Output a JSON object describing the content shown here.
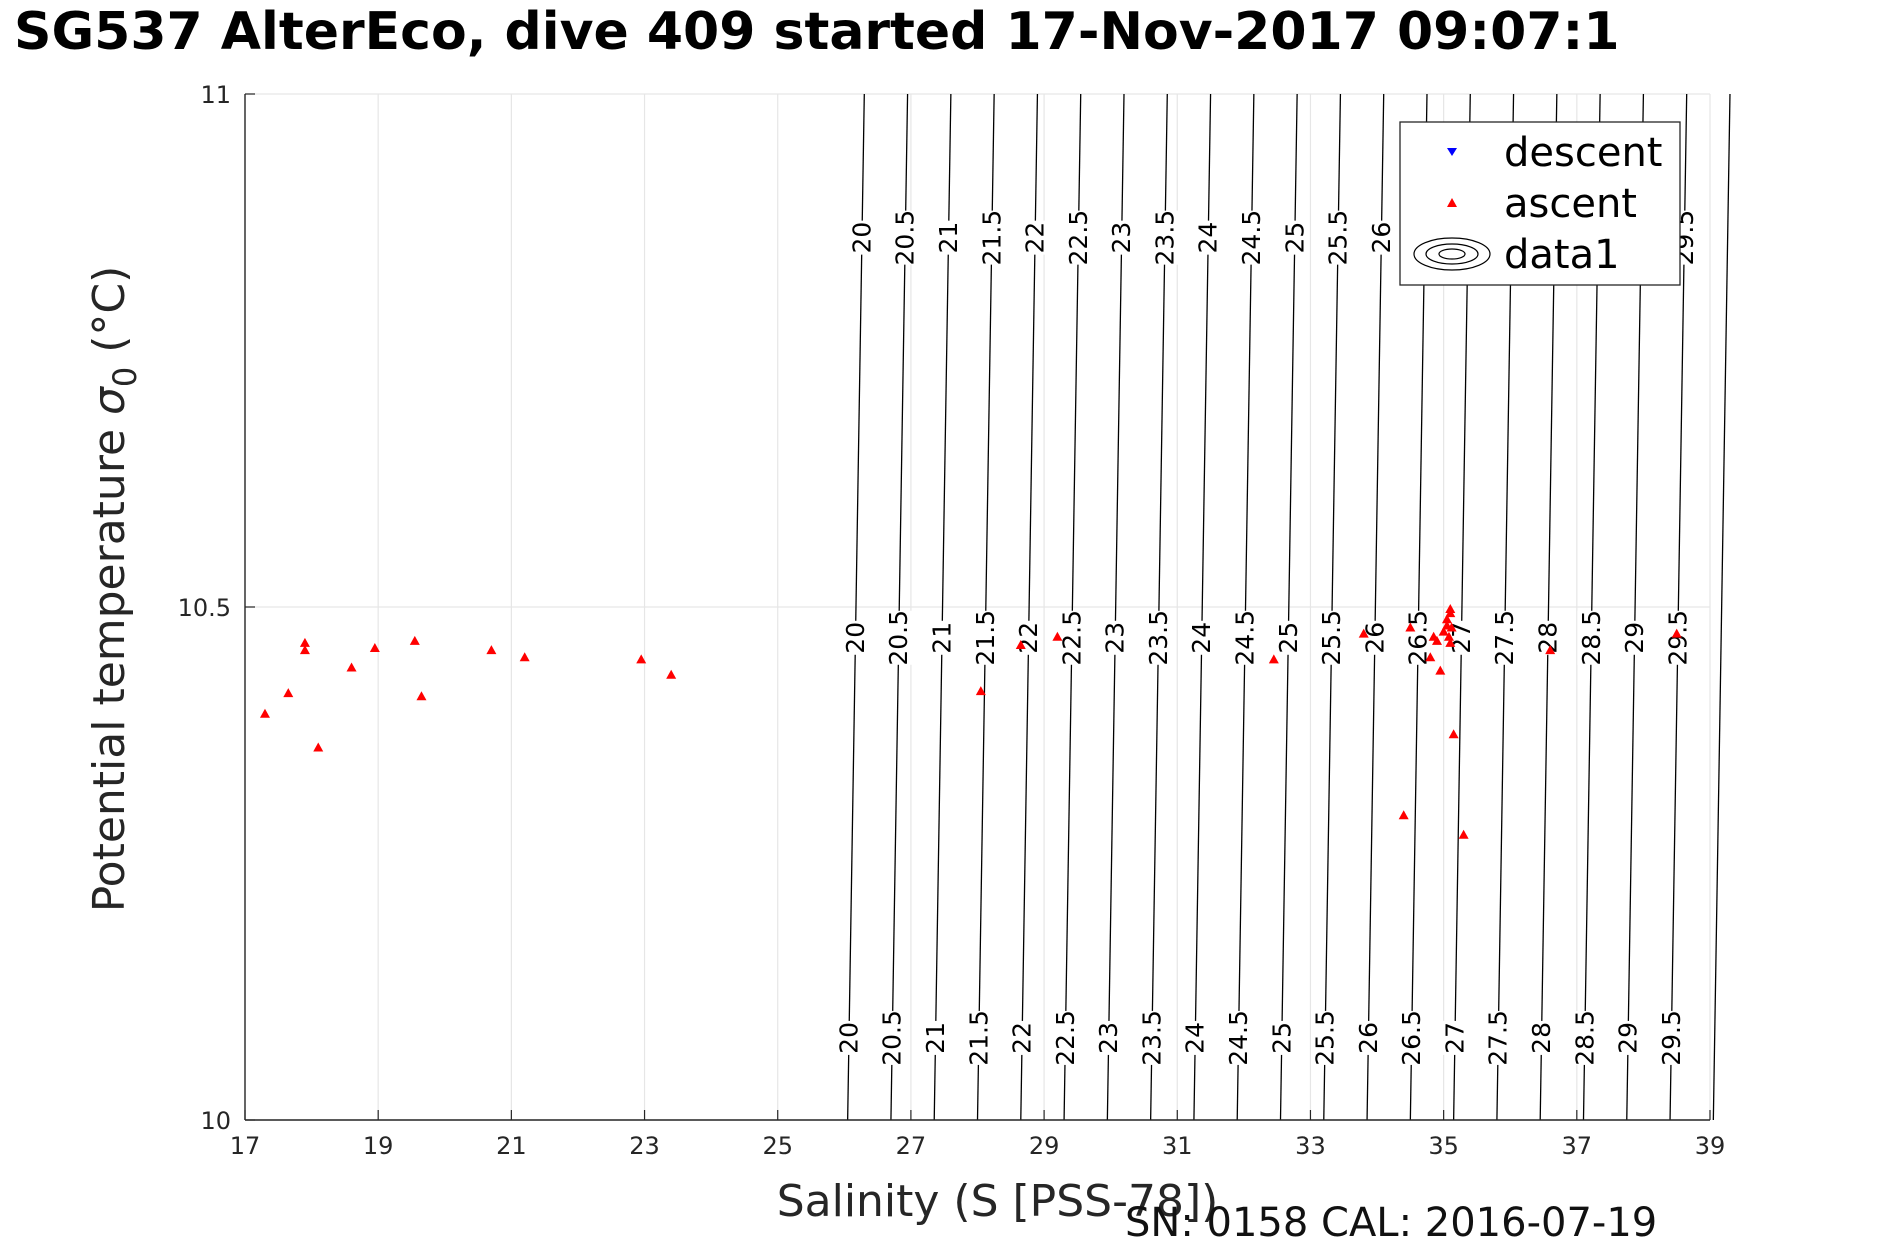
{
  "title": "SG537 AlterEco, dive 409 started 17-Nov-2017 09:07:1",
  "footer": "SN: 0158  CAL: 2016-07-19",
  "chart_data": {
    "type": "scatter",
    "xlabel": "Salinity (S [PSS-78])",
    "ylabel_main": "Potential temperature ",
    "ylabel_symbol": "σ",
    "ylabel_subscript": "0",
    "ylabel_unit": " (°C)",
    "xlim": [
      17,
      39
    ],
    "ylim": [
      10,
      11
    ],
    "xticks": [
      "17",
      "19",
      "21",
      "23",
      "25",
      "27",
      "29",
      "31",
      "33",
      "35",
      "37",
      "39"
    ],
    "yticks": [
      "10",
      "10.5",
      "11"
    ],
    "grid": true,
    "colors": {
      "descent": "#0000ff",
      "ascent": "#ff0000",
      "contour": "#000000",
      "grid": "#e6e6e6"
    },
    "legend": {
      "placement": "top-right",
      "entries": [
        {
          "label": "descent",
          "marker": "triangle-down",
          "color": "#0000ff"
        },
        {
          "label": "ascent",
          "marker": "triangle-up",
          "color": "#ff0000"
        },
        {
          "label": "data1",
          "marker": "contour-icon",
          "color": "#000000"
        }
      ]
    },
    "contours": {
      "levels": [
        "20",
        "20.5",
        "21",
        "21.5",
        "22",
        "22.5",
        "23",
        "23.5",
        "24",
        "24.5",
        "25",
        "25.5",
        "26",
        "26.5",
        "27",
        "27.5",
        "28",
        "28.5",
        "29",
        "29.5",
        "30"
      ],
      "s_at_t11": [
        26.3,
        26.95,
        27.6,
        28.25,
        28.9,
        29.55,
        30.2,
        30.85,
        31.5,
        32.15,
        32.8,
        33.45,
        34.1,
        34.75,
        35.4,
        36.05,
        36.7,
        37.35,
        38.0,
        38.65,
        39.3
      ],
      "s_at_t10": [
        26.05,
        26.7,
        27.35,
        28.0,
        28.65,
        29.3,
        29.95,
        30.6,
        31.25,
        31.9,
        32.55,
        33.2,
        33.85,
        34.5,
        35.15,
        35.8,
        36.45,
        37.1,
        37.75,
        38.4,
        39.05
      ]
    },
    "series": [
      {
        "name": "descent",
        "x": [],
        "y": []
      },
      {
        "name": "ascent",
        "x": [
          17.3,
          17.65,
          17.9,
          17.9,
          18.1,
          18.6,
          18.95,
          19.55,
          19.65,
          20.7,
          21.2,
          22.95,
          23.4,
          28.05,
          28.65,
          29.2,
          32.45,
          33.8,
          34.4,
          34.5,
          34.8,
          34.85,
          34.9,
          34.95,
          35.0,
          35.05,
          35.05,
          35.08,
          35.1,
          35.1,
          35.1,
          35.12,
          35.15,
          35.3,
          36.6,
          38.5
        ],
        "y": [
          10.396,
          10.416,
          10.458,
          10.465,
          10.363,
          10.441,
          10.46,
          10.467,
          10.413,
          10.458,
          10.451,
          10.449,
          10.434,
          10.418,
          10.463,
          10.471,
          10.449,
          10.474,
          10.297,
          10.48,
          10.451,
          10.471,
          10.467,
          10.438,
          10.476,
          10.482,
          10.488,
          10.471,
          10.465,
          10.494,
          10.498,
          10.48,
          10.376,
          10.278,
          10.458,
          10.474
        ]
      }
    ]
  }
}
